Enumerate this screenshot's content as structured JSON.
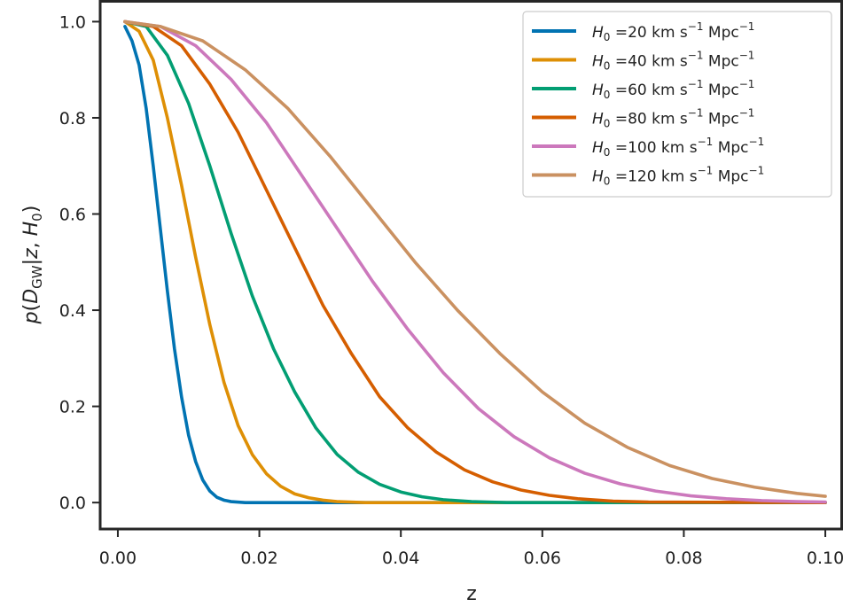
{
  "chart_data": {
    "type": "line",
    "xlabel": "z",
    "ylabel": "p(D_GW|z, H_0)",
    "xlim": [
      -0.0025,
      0.1025
    ],
    "ylim": [
      -0.055,
      1.045
    ],
    "xticks": [
      "0.00",
      "0.02",
      "0.04",
      "0.06",
      "0.08",
      "0.10"
    ],
    "xtick_values": [
      0.0,
      0.02,
      0.04,
      0.06,
      0.08,
      0.1
    ],
    "yticks": [
      "0.0",
      "0.2",
      "0.4",
      "0.6",
      "0.8",
      "1.0"
    ],
    "ytick_values": [
      0.0,
      0.2,
      0.4,
      0.6,
      0.8,
      1.0
    ],
    "grid": false,
    "legend_position": "top-right",
    "series": [
      {
        "name": "H_0 =20 km s^-1 Mpc^-1",
        "H0": "20",
        "color": "#0173b2",
        "points": [
          [
            0.001,
            0.99
          ],
          [
            0.002,
            0.96
          ],
          [
            0.003,
            0.91
          ],
          [
            0.004,
            0.82
          ],
          [
            0.005,
            0.7
          ],
          [
            0.006,
            0.57
          ],
          [
            0.007,
            0.44
          ],
          [
            0.008,
            0.32
          ],
          [
            0.009,
            0.22
          ],
          [
            0.01,
            0.14
          ],
          [
            0.011,
            0.085
          ],
          [
            0.012,
            0.047
          ],
          [
            0.013,
            0.024
          ],
          [
            0.014,
            0.011
          ],
          [
            0.015,
            0.005
          ],
          [
            0.016,
            0.002
          ],
          [
            0.018,
            0.0
          ],
          [
            0.025,
            0.0
          ],
          [
            0.05,
            0.0
          ],
          [
            0.1,
            0.0
          ]
        ]
      },
      {
        "name": "H_0 =40 km s^-1 Mpc^-1",
        "H0": "40",
        "color": "#de8f05",
        "points": [
          [
            0.001,
            1.0
          ],
          [
            0.003,
            0.98
          ],
          [
            0.005,
            0.92
          ],
          [
            0.007,
            0.8
          ],
          [
            0.009,
            0.66
          ],
          [
            0.011,
            0.51
          ],
          [
            0.013,
            0.37
          ],
          [
            0.015,
            0.25
          ],
          [
            0.017,
            0.16
          ],
          [
            0.019,
            0.1
          ],
          [
            0.021,
            0.06
          ],
          [
            0.023,
            0.034
          ],
          [
            0.025,
            0.018
          ],
          [
            0.027,
            0.01
          ],
          [
            0.029,
            0.005
          ],
          [
            0.031,
            0.002
          ],
          [
            0.035,
            0.0
          ],
          [
            0.05,
            0.0
          ],
          [
            0.1,
            0.0
          ]
        ]
      },
      {
        "name": "H_0 =60 km s^-1 Mpc^-1",
        "H0": "60",
        "color": "#029e73",
        "points": [
          [
            0.001,
            1.0
          ],
          [
            0.004,
            0.99
          ],
          [
            0.007,
            0.93
          ],
          [
            0.01,
            0.83
          ],
          [
            0.013,
            0.7
          ],
          [
            0.016,
            0.56
          ],
          [
            0.019,
            0.43
          ],
          [
            0.022,
            0.32
          ],
          [
            0.025,
            0.23
          ],
          [
            0.028,
            0.155
          ],
          [
            0.031,
            0.1
          ],
          [
            0.034,
            0.063
          ],
          [
            0.037,
            0.038
          ],
          [
            0.04,
            0.022
          ],
          [
            0.043,
            0.012
          ],
          [
            0.046,
            0.006
          ],
          [
            0.05,
            0.002
          ],
          [
            0.055,
            0.0
          ],
          [
            0.1,
            0.0
          ]
        ]
      },
      {
        "name": "H_0 =80 km s^-1 Mpc^-1",
        "H0": "80",
        "color": "#d55e00",
        "points": [
          [
            0.001,
            1.0
          ],
          [
            0.005,
            0.99
          ],
          [
            0.009,
            0.95
          ],
          [
            0.013,
            0.87
          ],
          [
            0.017,
            0.77
          ],
          [
            0.021,
            0.65
          ],
          [
            0.025,
            0.53
          ],
          [
            0.029,
            0.41
          ],
          [
            0.033,
            0.31
          ],
          [
            0.037,
            0.22
          ],
          [
            0.041,
            0.155
          ],
          [
            0.045,
            0.105
          ],
          [
            0.049,
            0.068
          ],
          [
            0.053,
            0.043
          ],
          [
            0.057,
            0.026
          ],
          [
            0.061,
            0.015
          ],
          [
            0.065,
            0.008
          ],
          [
            0.07,
            0.003
          ],
          [
            0.075,
            0.001
          ],
          [
            0.1,
            0.0
          ]
        ]
      },
      {
        "name": "H_0 =100 km s^-1 Mpc^-1",
        "H0": "100",
        "color": "#cc78bc",
        "points": [
          [
            0.001,
            1.0
          ],
          [
            0.006,
            0.99
          ],
          [
            0.011,
            0.95
          ],
          [
            0.016,
            0.88
          ],
          [
            0.021,
            0.79
          ],
          [
            0.026,
            0.68
          ],
          [
            0.031,
            0.57
          ],
          [
            0.036,
            0.46
          ],
          [
            0.041,
            0.36
          ],
          [
            0.046,
            0.27
          ],
          [
            0.051,
            0.195
          ],
          [
            0.056,
            0.137
          ],
          [
            0.061,
            0.093
          ],
          [
            0.066,
            0.061
          ],
          [
            0.071,
            0.039
          ],
          [
            0.076,
            0.024
          ],
          [
            0.081,
            0.014
          ],
          [
            0.086,
            0.008
          ],
          [
            0.091,
            0.004
          ],
          [
            0.096,
            0.002
          ],
          [
            0.1,
            0.001
          ]
        ]
      },
      {
        "name": "H_0 =120 km s^-1 Mpc^-1",
        "H0": "120",
        "color": "#ca9161",
        "points": [
          [
            0.001,
            1.0
          ],
          [
            0.006,
            0.99
          ],
          [
            0.012,
            0.96
          ],
          [
            0.018,
            0.9
          ],
          [
            0.024,
            0.82
          ],
          [
            0.03,
            0.72
          ],
          [
            0.036,
            0.61
          ],
          [
            0.042,
            0.5
          ],
          [
            0.048,
            0.4
          ],
          [
            0.054,
            0.31
          ],
          [
            0.06,
            0.23
          ],
          [
            0.066,
            0.165
          ],
          [
            0.072,
            0.115
          ],
          [
            0.078,
            0.077
          ],
          [
            0.084,
            0.05
          ],
          [
            0.09,
            0.032
          ],
          [
            0.096,
            0.019
          ],
          [
            0.1,
            0.013
          ]
        ]
      }
    ]
  }
}
